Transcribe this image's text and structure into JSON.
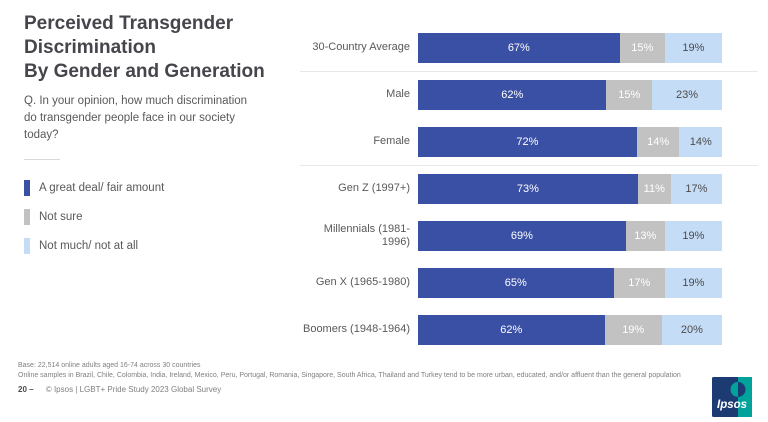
{
  "header": {
    "title_lines": [
      "Perceived Transgender",
      "Discrimination",
      "By Gender and Generation"
    ],
    "question": "Q. In your opinion, how much discrimination do transgender people face in our society today?"
  },
  "legend": {
    "items": [
      {
        "label": "A great deal/ fair amount",
        "color": "#3a50a4"
      },
      {
        "label": "Not sure",
        "color": "#c2c2c2"
      },
      {
        "label": "Not much/ not at all",
        "color": "#c5dcf6"
      }
    ]
  },
  "chart_data": {
    "type": "bar",
    "orientation": "horizontal",
    "stacked": true,
    "title": "Perceived Transgender Discrimination By Gender and Generation",
    "categories": [
      "30-Country Average",
      "Male",
      "Female",
      "Gen Z (1997+)",
      "Millennials (1981-1996)",
      "Gen X (1965-1980)",
      "Boomers (1948-1964)"
    ],
    "series": [
      {
        "name": "A great deal/ fair amount",
        "color": "#3a50a4",
        "values": [
          67,
          62,
          72,
          73,
          69,
          65,
          62
        ]
      },
      {
        "name": "Not sure",
        "color": "#c2c2c2",
        "values": [
          15,
          15,
          14,
          11,
          13,
          17,
          19
        ]
      },
      {
        "name": "Not much/ not at all",
        "color": "#c5dcf6",
        "values": [
          19,
          23,
          14,
          17,
          19,
          19,
          20
        ]
      }
    ],
    "value_suffix": "%",
    "xlim": [
      0,
      101
    ],
    "grid": false,
    "legend_position": "left",
    "group_dividers_after_rows": [
      0,
      2
    ]
  },
  "footer": {
    "base_note": "Base: 22,514 online adults aged 16-74 across 30 countries",
    "sample_note": "Online samples in Brazil, Chile, Colombia, India, Ireland, Mexico, Peru, Portugal, Romania, Singapore, South Africa, Thailand and Turkey tend to be more urban, educated, and/or affluent than the general population",
    "page_number": "20",
    "dash": "–",
    "source": "© Ipsos | LGBT+ Pride Study 2023 Global Survey"
  },
  "logo": {
    "text": "Ipsos",
    "navy": "#1d3b73",
    "teal": "#00a39a"
  }
}
